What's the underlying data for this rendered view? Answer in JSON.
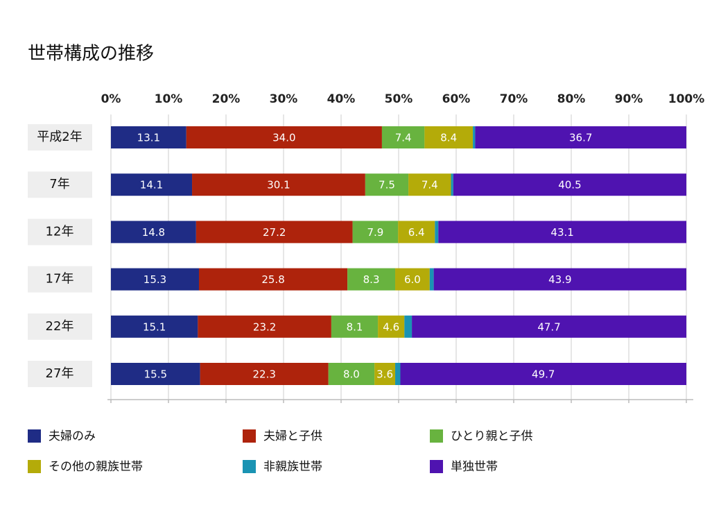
{
  "chart_data": {
    "type": "stacked-bar-horizontal",
    "title": "世帯構成の推移",
    "categories": [
      "平成2年",
      "7年",
      "12年",
      "17年",
      "22年",
      "27年"
    ],
    "xlim": [
      0,
      100
    ],
    "xticks": [
      {
        "value": 0,
        "label": "0%"
      },
      {
        "value": 10,
        "label": "10%"
      },
      {
        "value": 20,
        "label": "20%"
      },
      {
        "value": 30,
        "label": "30%"
      },
      {
        "value": 40,
        "label": "40%"
      },
      {
        "value": 50,
        "label": "50%"
      },
      {
        "value": 60,
        "label": "60%"
      },
      {
        "value": 70,
        "label": "70%"
      },
      {
        "value": 80,
        "label": "80%"
      },
      {
        "value": 90,
        "label": "90%"
      },
      {
        "value": 100,
        "label": "100%"
      }
    ],
    "grid": true,
    "series": [
      {
        "name": "夫婦のみ",
        "color": "#1f2c85",
        "values": [
          13.1,
          14.1,
          14.8,
          15.3,
          15.1,
          15.5
        ],
        "value_labels": [
          "13.1",
          "14.1",
          "14.8",
          "15.3",
          "15.1",
          "15.5"
        ]
      },
      {
        "name": "夫婦と子供",
        "color": "#ae230c",
        "values": [
          34.0,
          30.1,
          27.2,
          25.8,
          23.2,
          22.3
        ],
        "value_labels": [
          "34.0",
          "30.1",
          "27.2",
          "25.8",
          "23.2",
          "22.3"
        ]
      },
      {
        "name": "ひとり親と子供",
        "color": "#68b33f",
        "values": [
          7.4,
          7.5,
          7.9,
          8.3,
          8.1,
          8.0
        ],
        "value_labels": [
          "7.4",
          "7.5",
          "7.9",
          "8.3",
          "8.1",
          "8.0"
        ]
      },
      {
        "name": "その他の親族世帯",
        "color": "#b4ab09",
        "values": [
          8.4,
          7.4,
          6.4,
          6.0,
          4.6,
          3.6
        ],
        "value_labels": [
          "8.4",
          "7.4",
          "6.4",
          "6.0",
          "4.6",
          "3.6"
        ]
      },
      {
        "name": "非親族世帯",
        "color": "#1a93b3",
        "values": [
          0.4,
          0.4,
          0.6,
          0.7,
          1.3,
          0.9
        ]
      },
      {
        "name": "単独世帯",
        "color": "#4f13b0",
        "values": [
          36.7,
          40.5,
          43.1,
          43.9,
          47.7,
          49.7
        ],
        "value_labels": [
          "36.7",
          "40.5",
          "43.1",
          "43.9",
          "47.7",
          "49.7"
        ]
      }
    ]
  }
}
